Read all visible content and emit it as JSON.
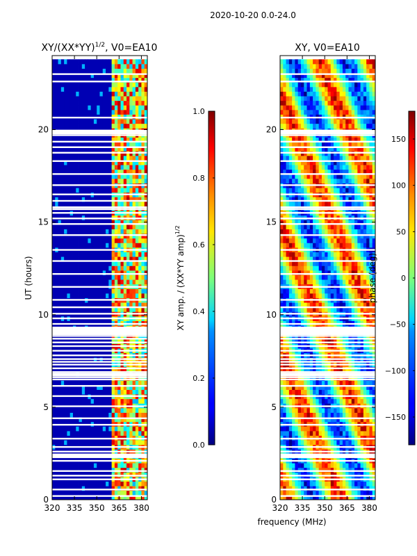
{
  "suptitle": "2020-10-20 0.0-24.0",
  "shared_ylabel": "UT (hours)",
  "shared_xlabel": "frequency (MHz)",
  "chart_data": [
    {
      "type": "heatmap",
      "title_main": "XY/(XX*YY)",
      "title_exp": "1/2",
      "title_tail": ", V0=EA10",
      "xlim": [
        320,
        384
      ],
      "ylim": [
        0,
        24
      ],
      "xticks": [
        320,
        335,
        350,
        365,
        380
      ],
      "yticks": [
        0,
        5,
        10,
        15,
        20
      ],
      "colormap": "jet",
      "colorbar": {
        "label_main": "XY amp. / (XX*YY amp)",
        "label_exp": "1/2",
        "range": [
          0.0,
          1.0
        ],
        "ticks": [
          0.0,
          0.2,
          0.4,
          0.6,
          0.8,
          1.0
        ],
        "tick_labels": [
          "0.0",
          "0.2",
          "0.4",
          "0.6",
          "0.8",
          "1.0"
        ]
      },
      "data_start_hours": 0.0,
      "data_end_hours": 23.8,
      "bright_band_start_mhz": 361,
      "description_values": {
        "background_level": 0.05,
        "band_level_range": [
          0.3,
          0.95
        ]
      }
    },
    {
      "type": "heatmap",
      "title": "XY, V0=EA10",
      "xlim": [
        320,
        384
      ],
      "ylim": [
        0,
        24
      ],
      "xticks": [
        320,
        335,
        350,
        365,
        380
      ],
      "yticks": [
        0,
        5,
        10,
        15,
        20
      ],
      "colormap": "jet",
      "colorbar": {
        "label": "phase (deg)",
        "range": [
          -180,
          180
        ],
        "ticks": [
          -150,
          -100,
          -50,
          0,
          50,
          100,
          150
        ],
        "tick_labels": [
          "−150",
          "−100",
          "−50",
          "0",
          "50",
          "100",
          "150"
        ]
      },
      "data_start_hours": 0.0,
      "data_end_hours": 23.8
    }
  ],
  "gap_rows_hours": [
    0.2,
    0.55,
    1.1,
    1.3,
    1.55,
    2.1,
    2.45,
    2.6,
    2.85,
    3.3,
    4.05,
    4.4,
    5.05,
    5.6,
    6.15,
    6.5,
    6.62,
    6.72,
    6.9,
    7.1,
    7.3,
    7.45,
    7.6,
    7.8,
    8.05,
    8.3,
    8.5,
    8.7,
    8.85,
    9.5,
    9.8,
    10.05,
    10.4,
    10.8,
    11.5,
    12.2,
    12.9,
    13.5,
    14.3,
    14.9,
    15.2,
    15.5,
    15.7,
    16.15,
    16.5,
    17.0,
    17.6,
    18.3,
    18.75,
    19.05,
    19.35,
    19.7,
    19.95,
    20.65,
    22.6,
    23.0
  ],
  "gap_bands_hours": [
    [
      2.25,
      2.45
    ],
    [
      6.75,
      6.85
    ],
    [
      8.9,
      9.35
    ],
    [
      15.75,
      15.85
    ],
    [
      19.75,
      19.95
    ]
  ]
}
